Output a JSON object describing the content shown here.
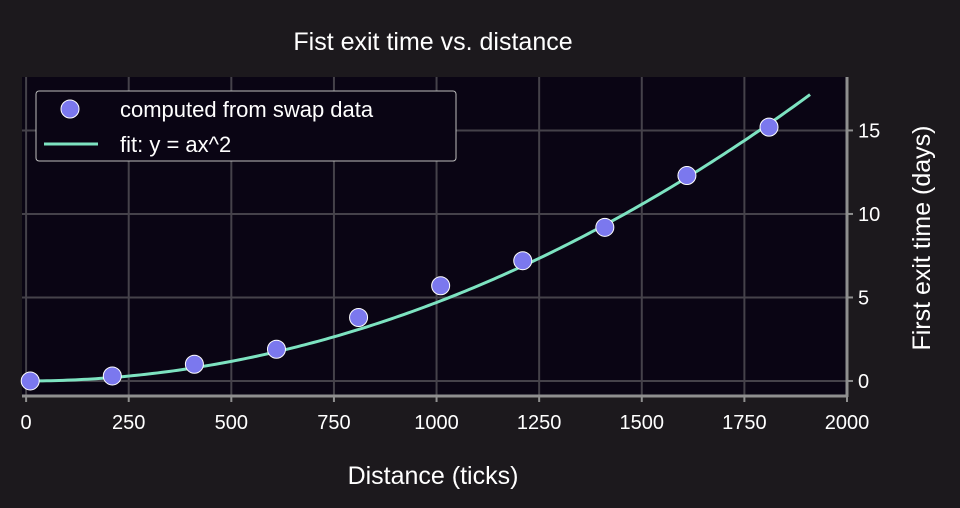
{
  "chart_data": {
    "type": "scatter",
    "title": "Fist exit time vs. distance",
    "xlabel": "Distance (ticks)",
    "ylabel": "First exit time (days)",
    "xlim": [
      -10,
      2000
    ],
    "ylim": [
      -0.9,
      18.2
    ],
    "x_ticks": [
      0,
      250,
      500,
      750,
      1000,
      1250,
      1500,
      1750,
      2000
    ],
    "y_ticks": [
      0,
      5,
      10,
      15
    ],
    "y_axis_position": "right",
    "grid": true,
    "legend_position": "top-left",
    "series": [
      {
        "name": "computed from swap data",
        "kind": "scatter",
        "color": "#7b78ee",
        "x": [
          10,
          210,
          410,
          610,
          810,
          1010,
          1210,
          1410,
          1610,
          1810
        ],
        "y": [
          0.0,
          0.3,
          1.0,
          1.9,
          3.8,
          5.7,
          7.2,
          9.2,
          12.3,
          15.2
        ]
      },
      {
        "name": "fit: y = ax^2",
        "kind": "line",
        "color": "#7de3c1",
        "a": 4.7e-06,
        "x_range": [
          0,
          1910
        ]
      }
    ]
  },
  "colors": {
    "background": "#1c191d",
    "plot_area": "#0a0514",
    "grid": "#45424a",
    "axis": "#8f8f8f",
    "text": "#ffffff"
  }
}
